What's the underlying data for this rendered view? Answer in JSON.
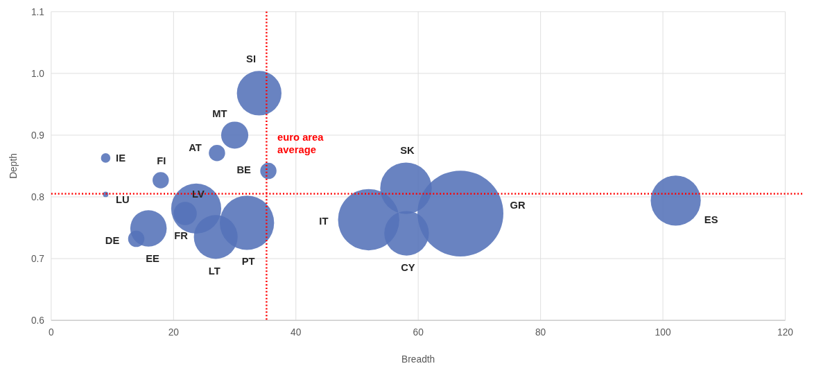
{
  "chart_data": {
    "type": "bubble",
    "xlabel": "Breadth",
    "ylabel": "Depth",
    "xlim": [
      0,
      120
    ],
    "xticks": [
      0,
      20,
      40,
      60,
      80,
      100,
      120
    ],
    "ylim": [
      0.6,
      1.1
    ],
    "yticks": [
      {
        "value": 0.6,
        "label": "0.6"
      },
      {
        "value": 0.7,
        "label": "0.7"
      },
      {
        "value": 0.8,
        "label": "0.8"
      },
      {
        "value": 0.9,
        "label": "0.9"
      },
      {
        "value": 1.0,
        "label": "1.0"
      },
      {
        "value": 1.1,
        "label": "1.1"
      }
    ],
    "grid": true,
    "series": [
      {
        "color": "#5472b8",
        "x": [
          34.0,
          30.0,
          27.1,
          35.5,
          8.9,
          8.9,
          17.9,
          23.7,
          21.9,
          15.9,
          13.9,
          26.9,
          32.0,
          51.9,
          58.0,
          58.1,
          66.9,
          102.1
        ],
        "values": [
          0.968,
          0.9,
          0.871,
          0.842,
          0.863,
          0.804,
          0.827,
          0.781,
          0.773,
          0.749,
          0.732,
          0.735,
          0.758,
          0.763,
          0.814,
          0.741,
          0.773,
          0.794
        ],
        "sizes": [
          0.27,
          0.1,
          0.036,
          0.036,
          0.012,
          0.004,
          0.036,
          0.34,
          0.073,
          0.18,
          0.036,
          0.26,
          0.4,
          0.51,
          0.36,
          0.27,
          1,
          0.34
        ]
      }
    ],
    "annotations": [
      "SI",
      "MT",
      "AT",
      "BE",
      "IE",
      "LU",
      "FI",
      "LV",
      "FR",
      "EE",
      "DE",
      "LT",
      "PT",
      "IT",
      "SK",
      "CY",
      "GR",
      "ES"
    ],
    "ref_lines": [
      {
        "axis": "x",
        "value": 35.2,
        "label": "euro area average",
        "color": "#ff0000",
        "line_style": "dotted"
      },
      {
        "axis": "y",
        "value": 0.805,
        "color": "#ff0000",
        "line_style": "dotted"
      }
    ]
  }
}
